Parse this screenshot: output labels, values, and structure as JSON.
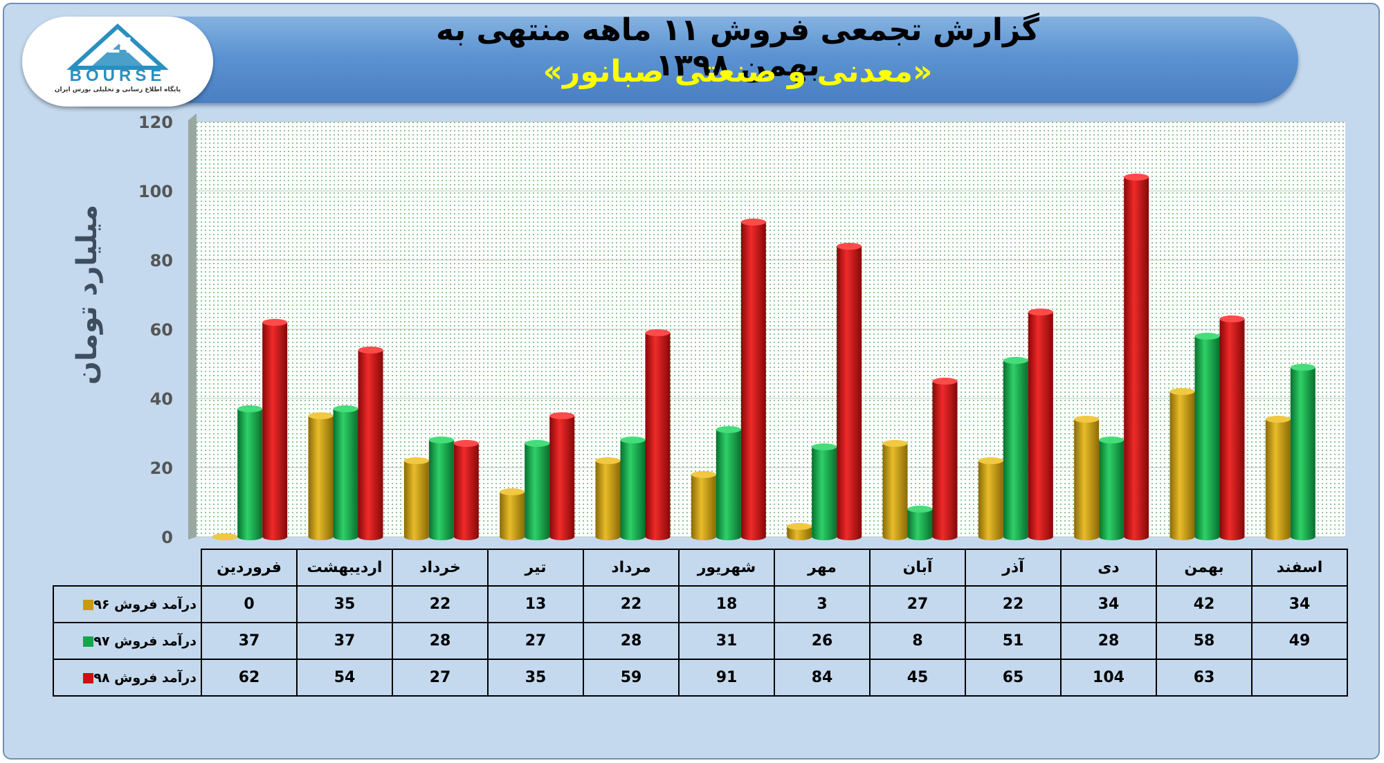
{
  "title": "گزارش تجمعی فروش ۱۱ ماهه منتهی به بهمن ۱۳۹۸",
  "subtitle": "«معدنی و صنعتی صبانور»",
  "logo": {
    "text": "BOURSE",
    "caption": "پایگاه اطلاع رسانی و تحلیلی بورس ایران"
  },
  "colors": {
    "background": "#c4d9ee",
    "banner": "#5b93d2",
    "series96": "#c89a0c",
    "series97": "#11a84a",
    "series98": "#d01010"
  },
  "chart_data": {
    "type": "bar",
    "title": "گزارش تجمعی فروش ۱۱ ماهه منتهی به بهمن ۱۳۹۸",
    "ylabel": "میلیارد تومان",
    "ylim": [
      0,
      120
    ],
    "yticks": [
      "0",
      "20",
      "40",
      "60",
      "80",
      "100",
      "120"
    ],
    "grid": true,
    "categories": [
      "فروردین",
      "اردیبهشت",
      "خرداد",
      "تیر",
      "مرداد",
      "شهریور",
      "مهر",
      "آبان",
      "آذر",
      "دی",
      "بهمن",
      "اسفند"
    ],
    "series": [
      {
        "name": "درآمد فروش ۹۶",
        "color": "#c89a0c",
        "values": [
          0,
          35,
          22,
          13,
          22,
          18,
          3,
          27,
          22,
          34,
          42,
          34
        ]
      },
      {
        "name": "درآمد فروش ۹۷",
        "color": "#11a84a",
        "values": [
          37,
          37,
          28,
          27,
          28,
          31,
          26,
          8,
          51,
          28,
          58,
          49
        ]
      },
      {
        "name": "درآمد فروش ۹۸",
        "color": "#d01010",
        "values": [
          62,
          54,
          27,
          35,
          59,
          91,
          84,
          45,
          65,
          104,
          63,
          null
        ]
      }
    ]
  }
}
